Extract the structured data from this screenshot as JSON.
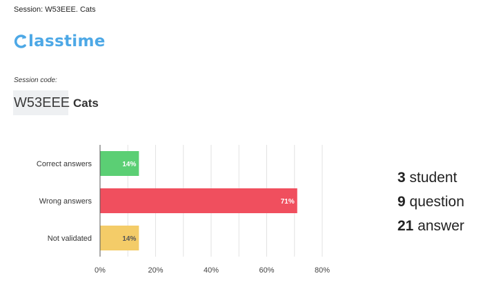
{
  "session": {
    "line": "Session: W53EEE. Cats"
  },
  "logo": {
    "icon": "classtime-c-logo",
    "text": "lasstime",
    "color": "#4da8e6"
  },
  "code": {
    "caption": "Session code:",
    "value": "W53EEE",
    "name": "Cats"
  },
  "stats": [
    {
      "value": "3",
      "label": " student"
    },
    {
      "value": "9",
      "label": " question"
    },
    {
      "value": "21",
      "label": " answer"
    }
  ],
  "chart_data": {
    "type": "bar",
    "orientation": "horizontal",
    "categories": [
      "Correct answers",
      "Wrong answers",
      "Not validated"
    ],
    "values": [
      14,
      71,
      14
    ],
    "data_labels": [
      "14%",
      "71%",
      "14%"
    ],
    "colors": [
      "#5bcf74",
      "#f04f5e",
      "#f4cc68"
    ],
    "label_colors": [
      "#ffffff",
      "#ffffff",
      "#555555"
    ],
    "xlim": [
      0,
      80
    ],
    "xticks": [
      "0%",
      "20%",
      "40%",
      "60%",
      "80%"
    ],
    "grid": true,
    "title": "",
    "xlabel": "",
    "ylabel": ""
  }
}
